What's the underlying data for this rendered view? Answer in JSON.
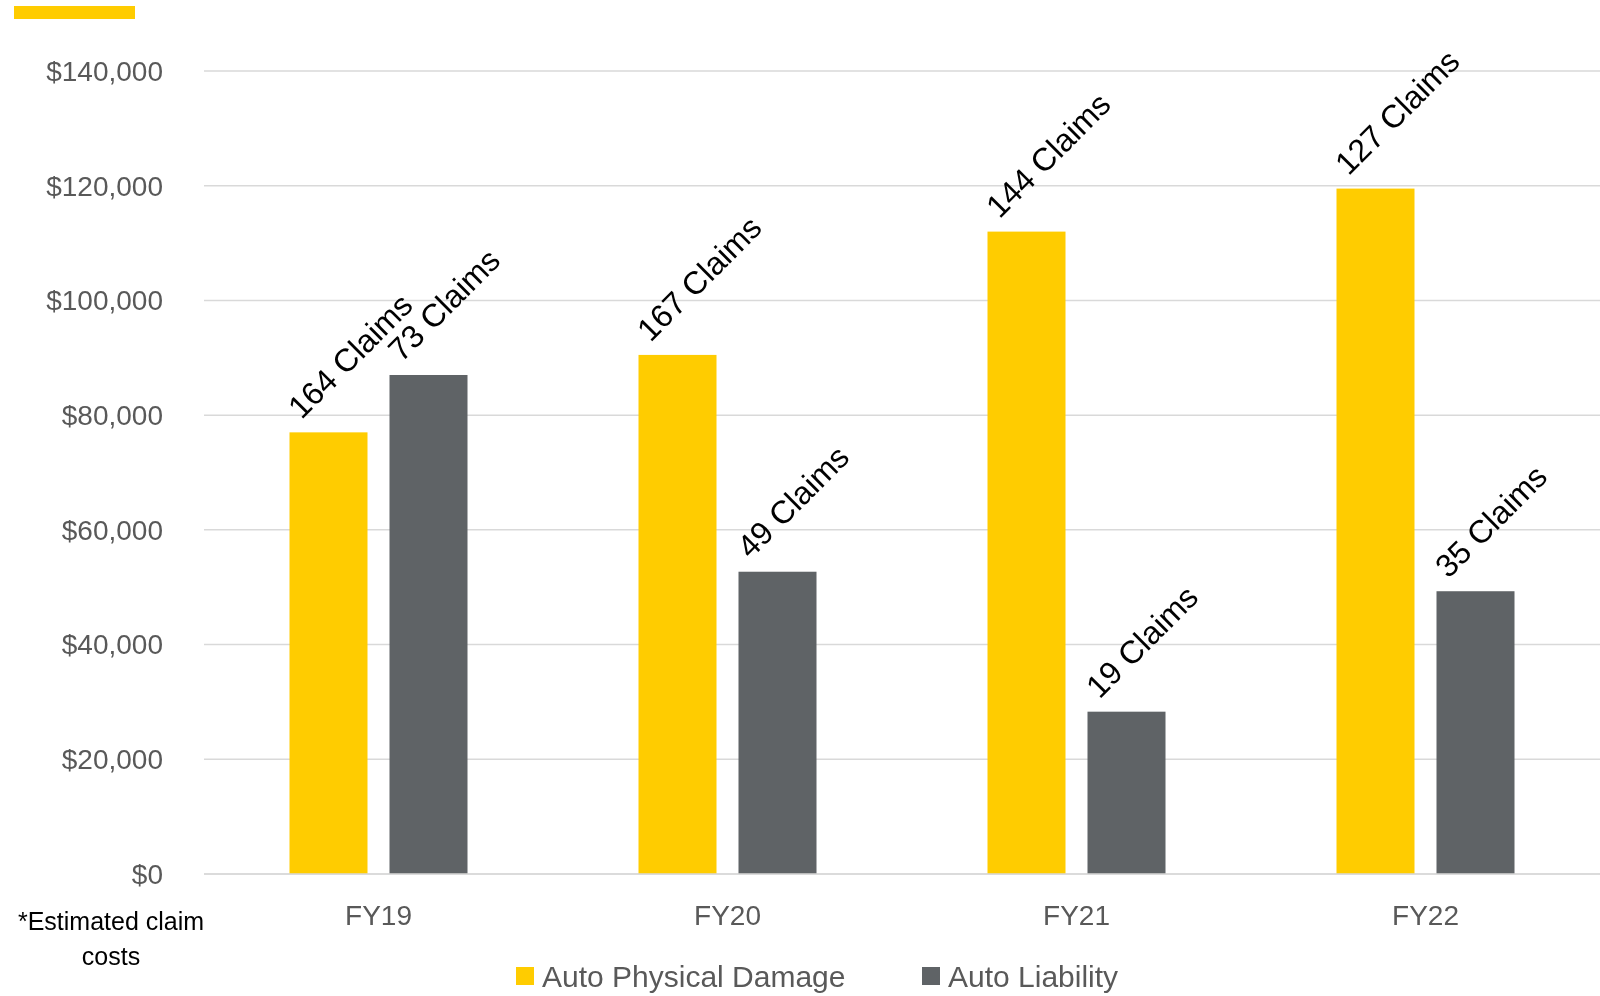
{
  "chart_data": {
    "type": "bar",
    "categories": [
      "FY19",
      "FY20",
      "FY21",
      "FY22"
    ],
    "series": [
      {
        "name": "Auto Physical Damage",
        "color": "#ffcc00",
        "values": [
          77000,
          90500,
          112000,
          119500
        ]
      },
      {
        "name": "Auto Liability",
        "color": "#5f6366",
        "values": [
          87000,
          52700,
          28300,
          49300
        ]
      }
    ],
    "ylim": [
      0,
      140000
    ],
    "yticks": [
      {
        "value": 0,
        "label": "$0"
      },
      {
        "value": 20000,
        "label": "$20,000"
      },
      {
        "value": 40000,
        "label": "$40,000"
      },
      {
        "value": 60000,
        "label": "$60,000"
      },
      {
        "value": 80000,
        "label": "$80,000"
      },
      {
        "value": 100000,
        "label": "$100,000"
      },
      {
        "value": 120000,
        "label": "$120,000"
      },
      {
        "value": 140000,
        "label": "$140,000"
      }
    ],
    "grid": "y",
    "legend": "bottom",
    "annotations": [
      "164 Claims",
      "73 Claims",
      "167 Claims",
      "49 Claims",
      "144 Claims",
      "19 Claims",
      "127 Claims",
      "35 Claims",
      "*Estimated claim costs"
    ]
  }
}
